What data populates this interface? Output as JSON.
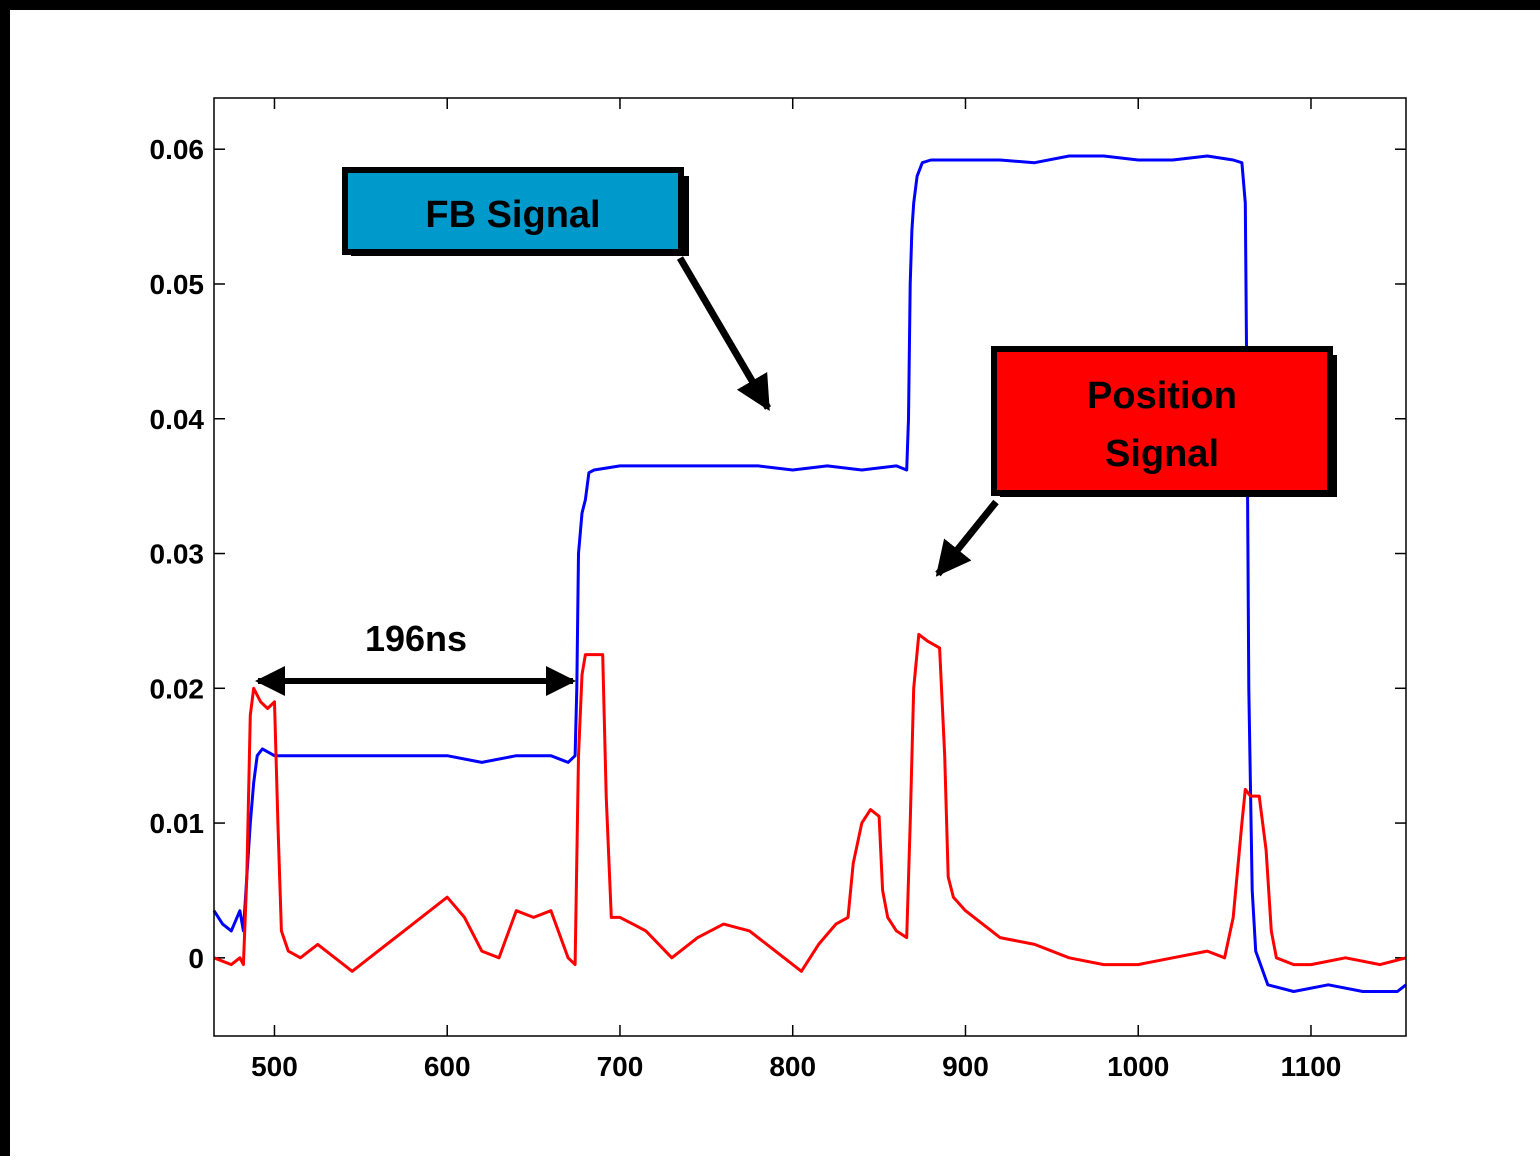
{
  "chart_data": {
    "type": "line",
    "title": "",
    "xlabel": "",
    "ylabel": "",
    "xlim": [
      465,
      1155
    ],
    "ylim": [
      -0.0058,
      0.0638
    ],
    "grid": false,
    "x_ticks": [
      500,
      600,
      700,
      800,
      900,
      1000,
      1100
    ],
    "x_tick_labels": [
      "500",
      "600",
      "700",
      "800",
      "900",
      "1000",
      "1100"
    ],
    "y_ticks": [
      0,
      0.01,
      0.02,
      0.03,
      0.04,
      0.05,
      0.06
    ],
    "y_tick_labels": [
      "0",
      "0.01",
      "0.02",
      "0.03",
      "0.04",
      "0.05",
      "0.06"
    ],
    "series": [
      {
        "name": "FB Signal",
        "color": "#0000ff",
        "x": [
          465,
          470,
          475,
          480,
          482,
          484,
          486,
          488,
          490,
          493,
          500,
          520,
          540,
          560,
          580,
          600,
          620,
          640,
          660,
          670,
          674,
          675,
          676,
          678,
          680,
          682,
          685,
          700,
          720,
          740,
          760,
          780,
          800,
          820,
          840,
          860,
          866,
          867,
          868,
          869,
          870,
          872,
          875,
          880,
          900,
          920,
          940,
          960,
          980,
          1000,
          1020,
          1040,
          1055,
          1060,
          1062,
          1063,
          1064,
          1066,
          1068,
          1075,
          1090,
          1110,
          1130,
          1150,
          1155
        ],
        "values": [
          0.0035,
          0.0025,
          0.002,
          0.0035,
          0.002,
          0.006,
          0.01,
          0.013,
          0.015,
          0.0155,
          0.015,
          0.015,
          0.015,
          0.015,
          0.015,
          0.015,
          0.0145,
          0.015,
          0.015,
          0.0145,
          0.015,
          0.02,
          0.03,
          0.033,
          0.034,
          0.036,
          0.0362,
          0.0365,
          0.0365,
          0.0365,
          0.0365,
          0.0365,
          0.0362,
          0.0365,
          0.0362,
          0.0365,
          0.0362,
          0.04,
          0.05,
          0.054,
          0.056,
          0.058,
          0.059,
          0.0592,
          0.0592,
          0.0592,
          0.059,
          0.0595,
          0.0595,
          0.0592,
          0.0592,
          0.0595,
          0.0592,
          0.059,
          0.056,
          0.04,
          0.02,
          0.005,
          0.0005,
          -0.002,
          -0.0025,
          -0.002,
          -0.0025,
          -0.0025,
          -0.002
        ]
      },
      {
        "name": "Position Signal",
        "color": "#ff0000",
        "x": [
          465,
          475,
          480,
          482,
          484,
          486,
          488,
          492,
          496,
          500,
          502,
          504,
          508,
          515,
          525,
          535,
          545,
          560,
          575,
          590,
          600,
          610,
          620,
          630,
          640,
          650,
          660,
          670,
          674,
          676,
          678,
          680,
          685,
          690,
          692,
          695,
          700,
          715,
          730,
          745,
          760,
          775,
          790,
          805,
          815,
          825,
          832,
          835,
          840,
          845,
          850,
          852,
          855,
          860,
          866,
          868,
          870,
          873,
          878,
          885,
          888,
          890,
          893,
          900,
          920,
          940,
          960,
          980,
          1000,
          1020,
          1040,
          1050,
          1055,
          1060,
          1062,
          1065,
          1070,
          1074,
          1077,
          1080,
          1090,
          1100,
          1120,
          1140,
          1155
        ],
        "values": [
          0.0,
          -0.0005,
          0.0,
          -0.0005,
          0.006,
          0.018,
          0.02,
          0.019,
          0.0185,
          0.019,
          0.01,
          0.002,
          0.0005,
          0.0,
          0.001,
          0.0,
          -0.001,
          0.0005,
          0.002,
          0.0035,
          0.0045,
          0.003,
          0.0005,
          0.0,
          0.0035,
          0.003,
          0.0035,
          0.0,
          -0.0005,
          0.015,
          0.021,
          0.0225,
          0.0225,
          0.0225,
          0.012,
          0.003,
          0.003,
          0.002,
          0.0,
          0.0015,
          0.0025,
          0.002,
          0.0005,
          -0.001,
          0.001,
          0.0025,
          0.003,
          0.007,
          0.01,
          0.011,
          0.0105,
          0.005,
          0.003,
          0.002,
          0.0015,
          0.01,
          0.02,
          0.024,
          0.0235,
          0.023,
          0.015,
          0.006,
          0.0045,
          0.0035,
          0.0015,
          0.001,
          0.0,
          -0.0005,
          -0.0005,
          0.0,
          0.0005,
          0.0,
          0.003,
          0.01,
          0.0125,
          0.012,
          0.012,
          0.008,
          0.002,
          0.0,
          -0.0005,
          -0.0005,
          0.0,
          -0.0005,
          0.0
        ]
      }
    ],
    "annotations": [
      {
        "text": "FB Signal",
        "fill": "#0099cc",
        "x": 582,
        "y": 0.0547
      },
      {
        "text": "Position Signal",
        "lines": [
          "Position",
          "Signal"
        ],
        "fill": "#ff0000",
        "x": 1010,
        "y": 0.0405
      },
      {
        "text": "196ns",
        "x": 578,
        "y": 0.0236,
        "from": 487,
        "to": 675,
        "at": 0.0202
      }
    ]
  }
}
